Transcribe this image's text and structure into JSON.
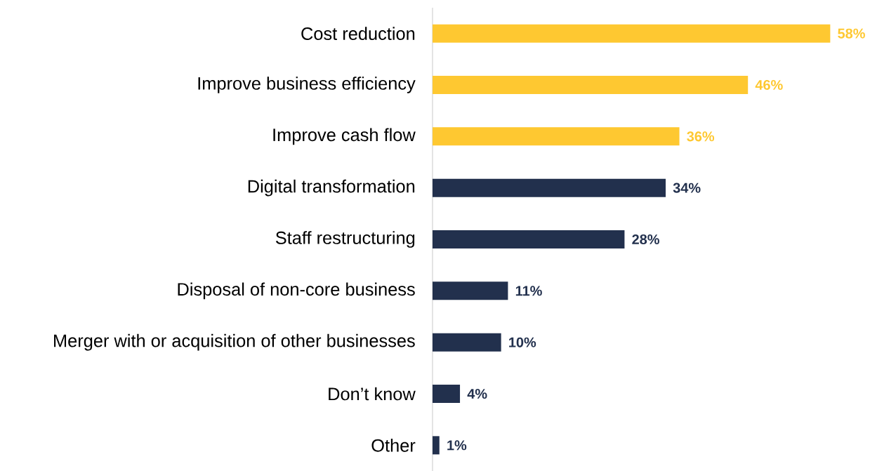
{
  "chart_data": {
    "type": "bar",
    "orientation": "horizontal",
    "categories": [
      "Cost reduction",
      "Improve business efficiency",
      "Improve cash flow",
      "Digital transformation",
      "Staff restructuring",
      "Disposal of non-core business",
      "Merger with or acquisition of other businesses",
      "Don’t know",
      "Other"
    ],
    "values": [
      58,
      46,
      36,
      34,
      28,
      11,
      10,
      4,
      1
    ],
    "value_labels": [
      "58%",
      "46%",
      "36%",
      "34%",
      "28%",
      "11%",
      "10%",
      "4%",
      "1%"
    ],
    "colors": [
      "#fec831",
      "#fec831",
      "#fec831",
      "#22304d",
      "#22304d",
      "#22304d",
      "#22304d",
      "#22304d",
      "#22304d"
    ],
    "data_labels": false
  }
}
